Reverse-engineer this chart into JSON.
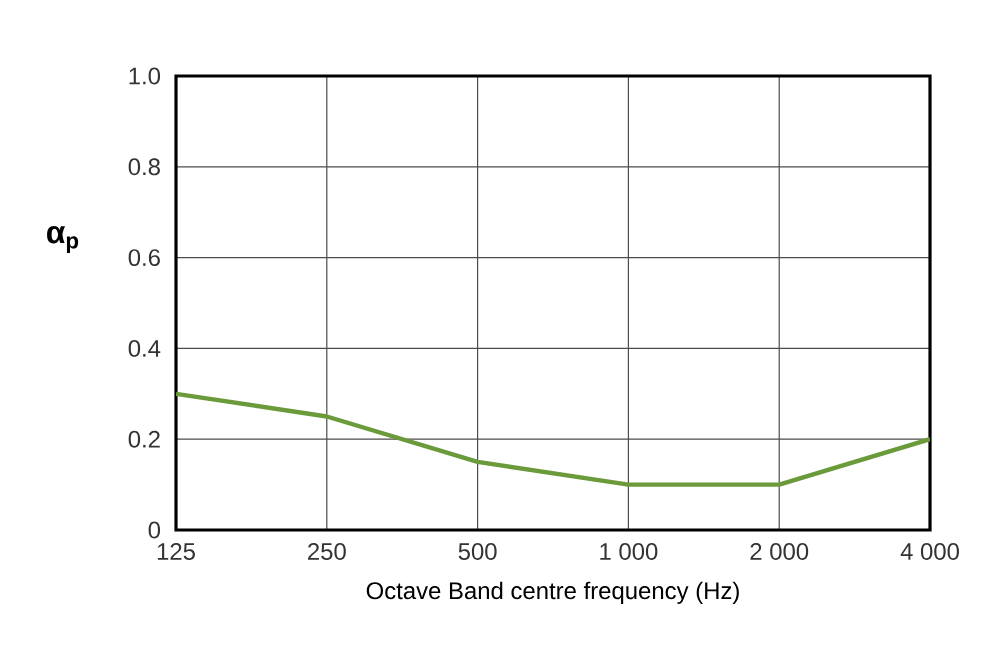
{
  "chart_data": {
    "type": "line",
    "xlabel": "Octave Band centre frequency (Hz)",
    "ylabel": "α$_{p}$",
    "categories": [
      "125",
      "250",
      "500",
      "1 000",
      "2 000",
      "4 000"
    ],
    "series": [
      {
        "color": "#6b9a3a",
        "values": [
          0.3,
          0.25,
          0.15,
          0.1,
          0.1,
          0.2
        ]
      }
    ],
    "ylim": [
      0,
      1.0
    ],
    "yticks": [
      0,
      0.2,
      0.4,
      0.6,
      0.8,
      {
        "value": 1.0,
        "label": "1.0"
      }
    ],
    "grid": true,
    "marker": "none",
    "line_style": "solid"
  }
}
